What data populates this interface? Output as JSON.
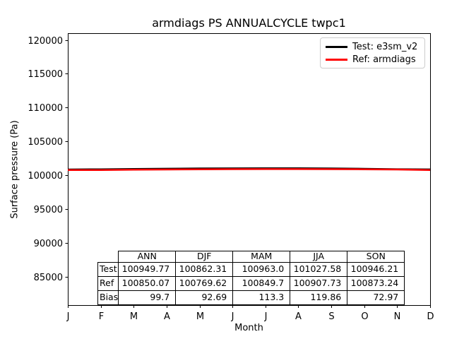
{
  "title": "armdiags PS ANNUALCYCLE twpc1",
  "axes": {
    "ylabel": "Surface pressure (Pa)",
    "xlabel": "Month",
    "yticks": [
      85000,
      90000,
      95000,
      100000,
      105000,
      110000,
      115000,
      120000
    ],
    "xtick_labels": [
      "J",
      "F",
      "M",
      "A",
      "M",
      "J",
      "J",
      "A",
      "S",
      "O",
      "N",
      "D"
    ]
  },
  "legend": {
    "entries": [
      {
        "name": "test",
        "label": "Test: e3sm_v2",
        "color": "#000000"
      },
      {
        "name": "ref",
        "label": "Ref: armdiags",
        "color": "#ff0000"
      }
    ]
  },
  "chart_data": {
    "type": "line",
    "title": "armdiags PS ANNUALCYCLE twpc1",
    "xlabel": "Month",
    "ylabel": "Surface pressure (Pa)",
    "x_categories": [
      "J",
      "F",
      "M",
      "A",
      "M",
      "J",
      "J",
      "A",
      "S",
      "O",
      "N",
      "D"
    ],
    "ylim": [
      80800,
      121000
    ],
    "grid": false,
    "legend_position": "upper right",
    "series": [
      {
        "name": "Test: e3sm_v2",
        "color": "#000000",
        "values": [
          100850,
          100875,
          100930,
          100965,
          101000,
          101020,
          101035,
          101030,
          101000,
          100950,
          100890,
          100860
        ]
      },
      {
        "name": "Ref: armdiags",
        "color": "#ff0000",
        "values": [
          100765,
          100775,
          100820,
          100850,
          100880,
          100900,
          100915,
          100908,
          100895,
          100875,
          100850,
          100769
        ]
      }
    ],
    "seasonal_table": {
      "col_headers": [
        "ANN",
        "DJF",
        "MAM",
        "JJA",
        "SON"
      ],
      "rows": [
        {
          "label": "Test",
          "values": [
            "100949.77",
            "100862.31",
            "100963.0",
            "101027.58",
            "100946.21"
          ]
        },
        {
          "label": "Ref",
          "values": [
            "100850.07",
            "100769.62",
            "100849.7",
            "100907.73",
            "100873.24"
          ]
        },
        {
          "label": "Bias",
          "values": [
            "99.7",
            "92.69",
            "113.3",
            "119.86",
            "72.97"
          ]
        }
      ]
    }
  },
  "table": {
    "col_headers": [
      "ANN",
      "DJF",
      "MAM",
      "JJA",
      "SON"
    ],
    "rows": [
      {
        "label": "Test",
        "values": [
          "100949.77",
          "100862.31",
          "100963.0",
          "101027.58",
          "100946.21"
        ]
      },
      {
        "label": "Ref",
        "values": [
          "100850.07",
          "100769.62",
          "100849.7",
          "100907.73",
          "100873.24"
        ]
      },
      {
        "label": "Bias",
        "values": [
          "99.7",
          "92.69",
          "113.3",
          "119.86",
          "72.97"
        ]
      }
    ]
  }
}
